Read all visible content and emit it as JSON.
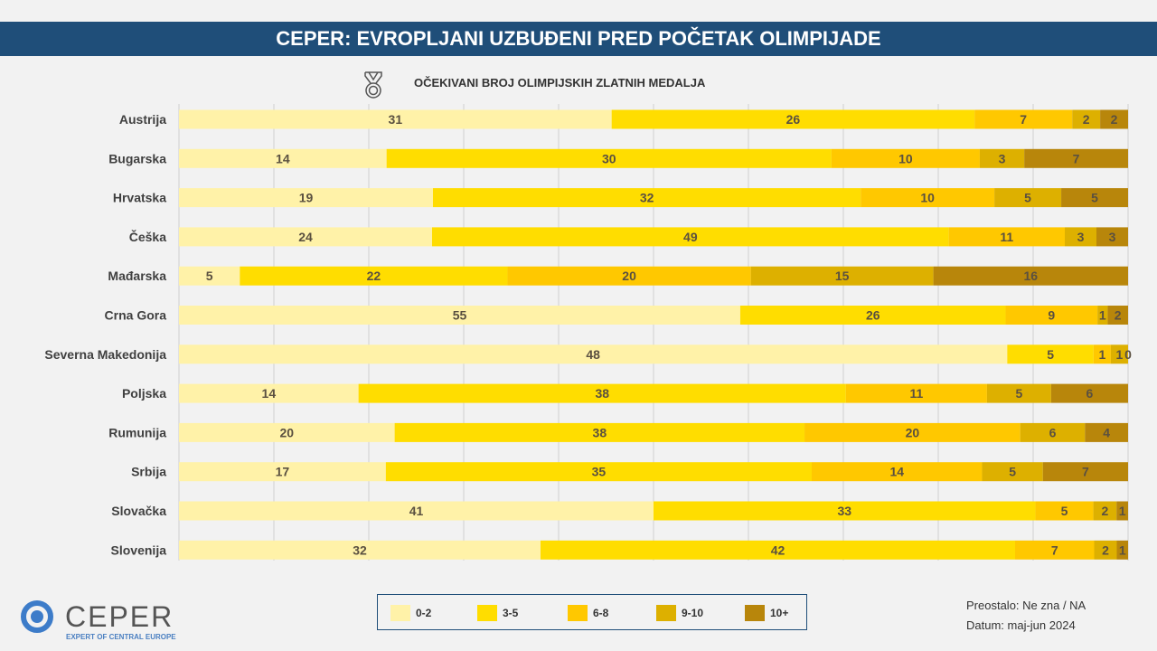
{
  "header": {
    "title": "CEPER: EVROPLJANI UZBUĐENI PRED POČETAK OLIMPIJADE"
  },
  "logo": {
    "name": "CEPER",
    "tagline": "EXPERT OF CENTRAL EUROPE",
    "color": "#3d7cc9"
  },
  "notes": {
    "remaining": "Preostalo: Ne zna / NA",
    "date": "Datum: maj-jun 2024"
  },
  "chart_data": {
    "type": "bar",
    "orientation": "horizontal",
    "stacked": "100%",
    "title": "OČEKIVANI BROJ OLIMPIJSKIH ZLATNIH MEDALJA",
    "title_icon": "medal-icon",
    "grid": true,
    "legend_position": "bottom",
    "categories": [
      "Austrija",
      "Bugarska",
      "Hrvatska",
      "Češka",
      "Mađarska",
      "Crna Gora",
      "Severna Makedonija",
      "Poljska",
      "Rumunija",
      "Srbija",
      "Slovačka",
      "Slovenija"
    ],
    "series": [
      {
        "name": "0-2",
        "color": "#fff2a8",
        "values": [
          31,
          14,
          19,
          24,
          5,
          55,
          48,
          14,
          20,
          17,
          41,
          32
        ]
      },
      {
        "name": "3-5",
        "color": "#ffdd00",
        "values": [
          26,
          30,
          32,
          49,
          22,
          26,
          5,
          38,
          38,
          35,
          33,
          42
        ]
      },
      {
        "name": "6-8",
        "color": "#ffc800",
        "values": [
          7,
          10,
          10,
          11,
          20,
          9,
          1,
          11,
          20,
          14,
          5,
          7
        ]
      },
      {
        "name": "9-10",
        "color": "#ddb000",
        "values": [
          2,
          3,
          5,
          3,
          15,
          1,
          1,
          5,
          6,
          5,
          2,
          2
        ]
      },
      {
        "name": "10+",
        "color": "#b8860b",
        "values": [
          2,
          7,
          5,
          3,
          16,
          2,
          0,
          6,
          4,
          7,
          1,
          1
        ]
      }
    ]
  }
}
